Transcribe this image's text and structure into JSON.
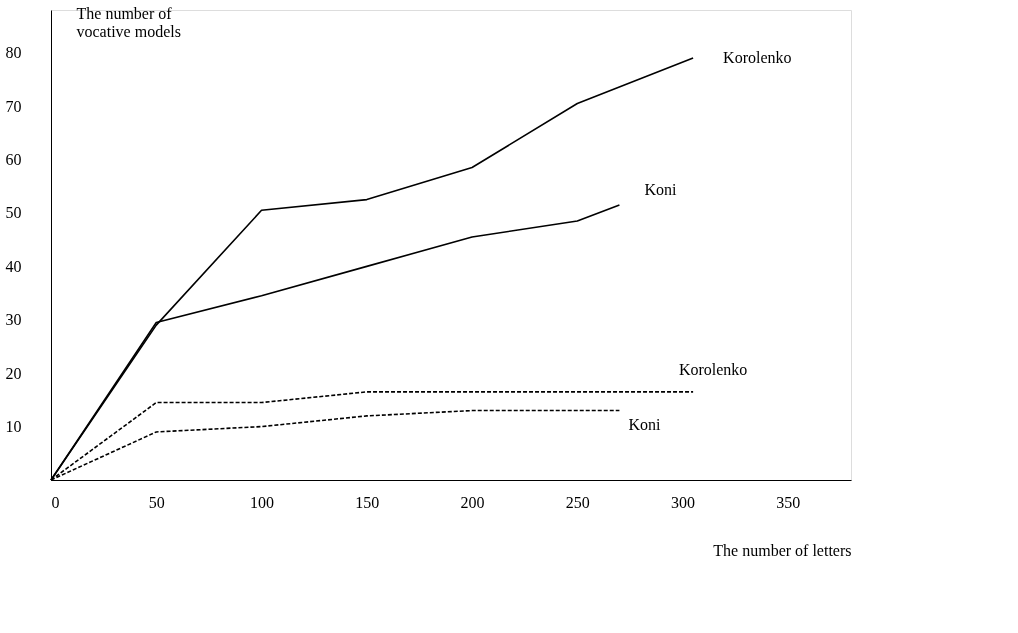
{
  "chart_data": {
    "type": "line",
    "xlabel": "The number of letters",
    "ylabel": "The number of vocative models",
    "xlim": [
      0,
      380
    ],
    "ylim": [
      0,
      88
    ],
    "xticks": [
      0,
      50,
      100,
      150,
      200,
      250,
      300,
      350
    ],
    "yticks": [
      10,
      20,
      30,
      40,
      50,
      60,
      70,
      80
    ],
    "grid": false,
    "marker": "none",
    "series": [
      {
        "name": "Korolenko",
        "color": "#000000",
        "line_style": "solid",
        "x": [
          0,
          50,
          100,
          150,
          200,
          250,
          305
        ],
        "values": [
          0,
          29,
          50.5,
          52.5,
          58.5,
          70.5,
          79
        ]
      },
      {
        "name": "Koni",
        "color": "#000000",
        "line_style": "solid",
        "x": [
          0,
          50,
          100,
          150,
          200,
          250,
          270
        ],
        "values": [
          0,
          29.5,
          34.5,
          40,
          45.5,
          48.5,
          51.5
        ]
      },
      {
        "name": "Korolenko",
        "color": "#000000",
        "line_style": "dashed",
        "x": [
          0,
          50,
          100,
          150,
          200,
          250,
          305
        ],
        "values": [
          0,
          14.5,
          14.5,
          16.5,
          16.5,
          16.5,
          16.5
        ]
      },
      {
        "name": "Koni",
        "color": "#000000",
        "line_style": "dashed",
        "x": [
          0,
          50,
          100,
          150,
          200,
          250,
          270
        ],
        "values": [
          0,
          9,
          10,
          12,
          13,
          13,
          13
        ]
      }
    ]
  }
}
